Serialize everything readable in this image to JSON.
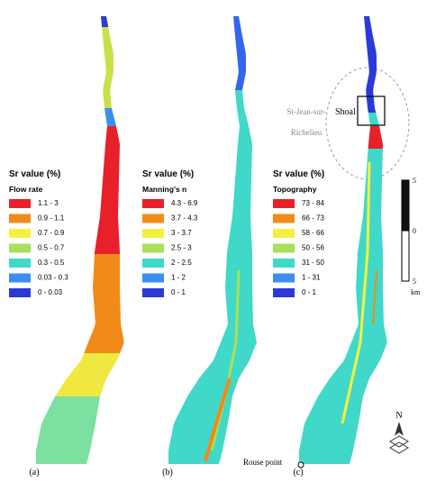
{
  "panels": [
    {
      "label": "(a)",
      "legend": {
        "title": "Sr value (%)",
        "subtitle": "Flow rate",
        "items": [
          {
            "label": "1.1 - 3",
            "color": "#e8202a"
          },
          {
            "label": "0.9 - 1.1",
            "color": "#f28a1a"
          },
          {
            "label": "0.7 - 0.9",
            "color": "#f5f040"
          },
          {
            "label": "0.5 - 0.7",
            "color": "#a8e05a"
          },
          {
            "label": "0.3 - 0.5",
            "color": "#40d8c8"
          },
          {
            "label": "0.03 - 0.3",
            "color": "#3a8ef0"
          },
          {
            "label": "0 - 0.03",
            "color": "#2a3ad8"
          }
        ]
      }
    },
    {
      "label": "(b)",
      "legend": {
        "title": "Sr value (%)",
        "subtitle": "Manning's n",
        "items": [
          {
            "label": "4.3 - 6.9",
            "color": "#e8202a"
          },
          {
            "label": "3.7 - 4.3",
            "color": "#f28a1a"
          },
          {
            "label": "3 - 3.7",
            "color": "#f5f040"
          },
          {
            "label": "2.5 - 3",
            "color": "#a8e05a"
          },
          {
            "label": "2 - 2.5",
            "color": "#40d8c8"
          },
          {
            "label": "1 - 2",
            "color": "#3a8ef0"
          },
          {
            "label": "0 - 1",
            "color": "#2a3ad8"
          }
        ]
      }
    },
    {
      "label": "(c)",
      "legend": {
        "title": "Sr value (%)",
        "subtitle": "Topography",
        "items": [
          {
            "label": "73 - 84",
            "color": "#e8202a"
          },
          {
            "label": "66 - 73",
            "color": "#f28a1a"
          },
          {
            "label": "58 - 66",
            "color": "#f5f040"
          },
          {
            "label": "50 - 56",
            "color": "#a8e05a"
          },
          {
            "label": "31 - 50",
            "color": "#40d8c8"
          },
          {
            "label": "1 - 31",
            "color": "#3a8ef0"
          },
          {
            "label": "0 - 1",
            "color": "#2a3ad8"
          }
        ]
      }
    }
  ],
  "annotations": {
    "city_line1": "St-Jean-sur-",
    "city_line2": "Richelieu",
    "shoal": "Shoal",
    "rouse_point": "Rouse point"
  },
  "scale_bar": {
    "ticks": [
      "5",
      "0",
      "5"
    ],
    "unit": "km"
  },
  "north": "N"
}
